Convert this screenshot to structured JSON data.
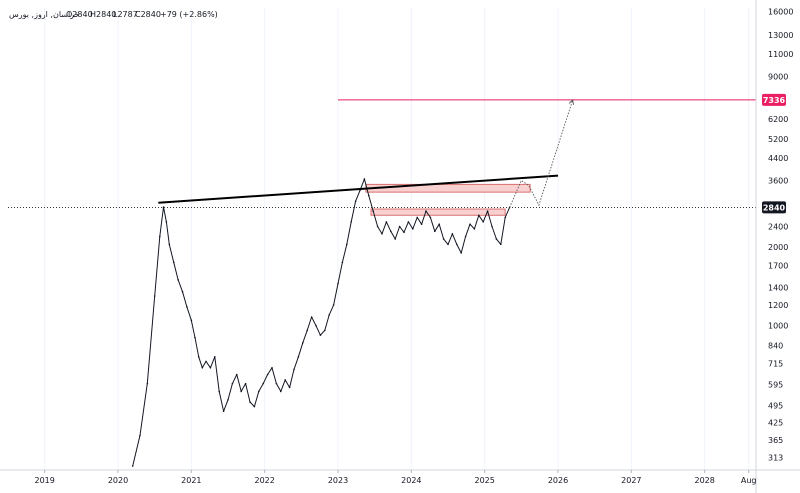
{
  "legend": {
    "symbol": "خراسان, اروز, بورس",
    "open": "O2840",
    "high": "H2840",
    "low": "L2787",
    "close": "C2840",
    "change": "+79 (+2.86%)"
  },
  "chart_data": {
    "type": "line",
    "price_scale": "log",
    "y_ticks": [
      313,
      365,
      425,
      495,
      595,
      715,
      840,
      1000,
      1200,
      1400,
      1700,
      2000,
      2400,
      2840,
      3600,
      4400,
      5200,
      6200,
      7336,
      9000,
      11000,
      13000,
      16000
    ],
    "y_tick_labels": [
      "313",
      "365",
      "425",
      "495",
      "595",
      "715",
      "840",
      "1000",
      "1200",
      "1400",
      "1700",
      "2000",
      "2400",
      "2840",
      "3600",
      "4400",
      "5200",
      "6200",
      "7336",
      "9000",
      "11000",
      "13000",
      "16000"
    ],
    "x_ticks": [
      "2019",
      "2020",
      "2021",
      "2022",
      "2023",
      "2024",
      "2025",
      "2026",
      "2027",
      "2028",
      "Aug"
    ],
    "x_tick_values": [
      2019.0,
      2020.0,
      2021.0,
      2022.0,
      2023.0,
      2024.0,
      2025.0,
      2026.0,
      2027.0,
      2028.0,
      2028.6
    ],
    "x_range": [
      2018.5,
      2028.7
    ],
    "y_range": [
      280,
      16500
    ],
    "current_price": 2840,
    "current_price_label": "2840",
    "target_price": 7336,
    "target_price_label": "7336",
    "series": [
      {
        "points": [
          [
            2020.2,
            290
          ],
          [
            2020.3,
            380
          ],
          [
            2020.4,
            600
          ],
          [
            2020.5,
            1300
          ],
          [
            2020.57,
            2200
          ],
          [
            2020.62,
            2850
          ],
          [
            2020.66,
            2500
          ],
          [
            2020.7,
            2050
          ],
          [
            2020.76,
            1750
          ],
          [
            2020.82,
            1500
          ],
          [
            2020.88,
            1350
          ],
          [
            2020.94,
            1180
          ],
          [
            2021.0,
            1050
          ],
          [
            2021.05,
            900
          ],
          [
            2021.1,
            760
          ],
          [
            2021.15,
            690
          ],
          [
            2021.2,
            730
          ],
          [
            2021.26,
            690
          ],
          [
            2021.32,
            760
          ],
          [
            2021.38,
            560
          ],
          [
            2021.44,
            470
          ],
          [
            2021.5,
            520
          ],
          [
            2021.56,
            600
          ],
          [
            2021.62,
            650
          ],
          [
            2021.68,
            560
          ],
          [
            2021.74,
            600
          ],
          [
            2021.8,
            510
          ],
          [
            2021.86,
            490
          ],
          [
            2021.92,
            560
          ],
          [
            2021.98,
            600
          ],
          [
            2022.04,
            650
          ],
          [
            2022.1,
            690
          ],
          [
            2022.16,
            600
          ],
          [
            2022.22,
            560
          ],
          [
            2022.28,
            620
          ],
          [
            2022.34,
            580
          ],
          [
            2022.4,
            680
          ],
          [
            2022.46,
            760
          ],
          [
            2022.52,
            860
          ],
          [
            2022.58,
            960
          ],
          [
            2022.64,
            1080
          ],
          [
            2022.7,
            1000
          ],
          [
            2022.76,
            920
          ],
          [
            2022.82,
            960
          ],
          [
            2022.88,
            1100
          ],
          [
            2022.94,
            1200
          ],
          [
            2023.0,
            1450
          ],
          [
            2023.06,
            1750
          ],
          [
            2023.12,
            2050
          ],
          [
            2023.18,
            2500
          ],
          [
            2023.24,
            3000
          ],
          [
            2023.3,
            3300
          ],
          [
            2023.36,
            3650
          ],
          [
            2023.42,
            3150
          ],
          [
            2023.48,
            2750
          ],
          [
            2023.54,
            2400
          ],
          [
            2023.6,
            2250
          ],
          [
            2023.66,
            2500
          ],
          [
            2023.72,
            2300
          ],
          [
            2023.78,
            2150
          ],
          [
            2023.84,
            2400
          ],
          [
            2023.9,
            2280
          ],
          [
            2023.96,
            2500
          ],
          [
            2024.02,
            2350
          ],
          [
            2024.08,
            2600
          ],
          [
            2024.14,
            2450
          ],
          [
            2024.2,
            2750
          ],
          [
            2024.26,
            2600
          ],
          [
            2024.32,
            2300
          ],
          [
            2024.38,
            2450
          ],
          [
            2024.44,
            2150
          ],
          [
            2024.5,
            2050
          ],
          [
            2024.56,
            2250
          ],
          [
            2024.62,
            2050
          ],
          [
            2024.68,
            1900
          ],
          [
            2024.74,
            2200
          ],
          [
            2024.8,
            2450
          ],
          [
            2024.86,
            2350
          ],
          [
            2024.92,
            2650
          ],
          [
            2024.98,
            2500
          ],
          [
            2025.04,
            2750
          ],
          [
            2025.1,
            2400
          ],
          [
            2025.16,
            2150
          ],
          [
            2025.22,
            2050
          ],
          [
            2025.28,
            2600
          ],
          [
            2025.34,
            2840
          ]
        ]
      }
    ],
    "trendline": [
      [
        2020.55,
        2960
      ],
      [
        2026.0,
        3760
      ]
    ],
    "target_line_start": 2023.0,
    "projection": [
      [
        2025.34,
        2840
      ],
      [
        2025.5,
        3600
      ],
      [
        2025.6,
        3450
      ],
      [
        2025.74,
        2900
      ],
      [
        2026.2,
        7336
      ]
    ],
    "zones": [
      {
        "x_start": 2023.38,
        "x_end": 2025.62,
        "y_low": 3250,
        "y_high": 3480
      },
      {
        "x_start": 2023.45,
        "x_end": 2025.28,
        "y_low": 2650,
        "y_high": 2800
      }
    ],
    "colors": {
      "price": "#131722",
      "trendline": "#000000",
      "target": "#e91e63",
      "zone_fill": "#f8c8c8",
      "zone_border": "#d97070",
      "current_badge": "#131722",
      "grid": "#f0f3fa"
    }
  }
}
